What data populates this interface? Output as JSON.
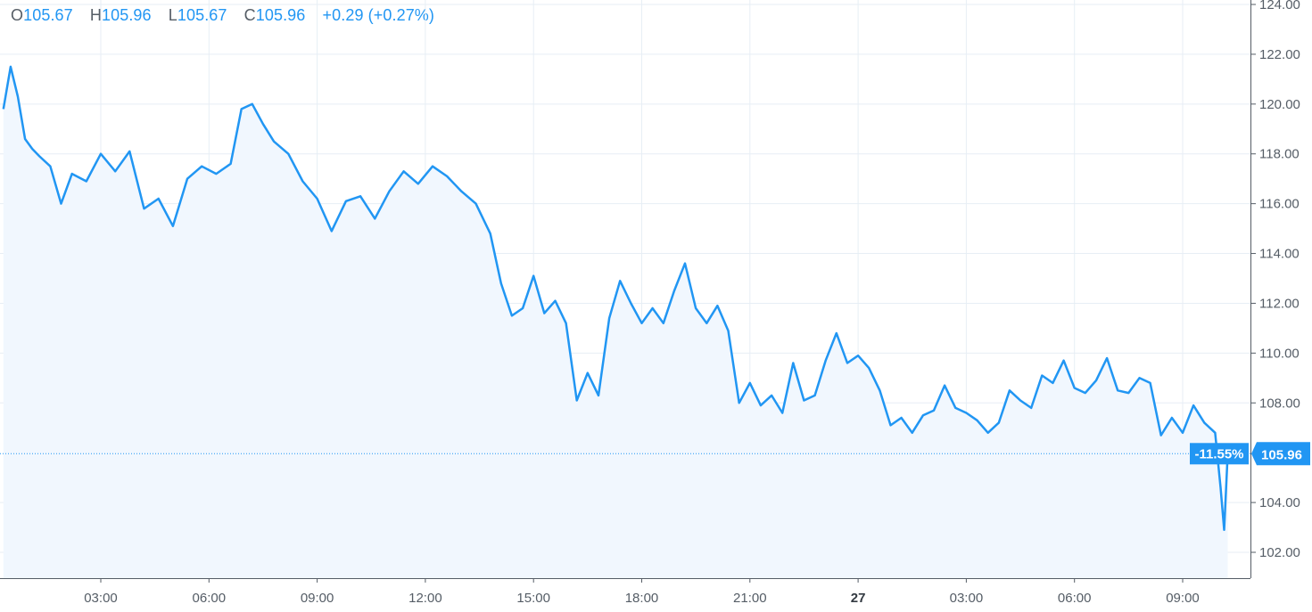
{
  "legend": {
    "open_key": "O",
    "open": "105.67",
    "high_key": "H",
    "high": "105.96",
    "low_key": "L",
    "low": "105.67",
    "close_key": "C",
    "close": "105.96",
    "change": "+0.29 (+0.27%)"
  },
  "colors": {
    "line": "#2196f3",
    "area": "#f1f7fe",
    "grid": "#e7eef5",
    "badge": "#2196f3",
    "axis": "#555d66"
  },
  "chart_data": {
    "type": "area",
    "title": "",
    "xlabel": "",
    "ylabel": "",
    "ylim": [
      101,
      124
    ],
    "y_ticks": [
      "124.00",
      "122.00",
      "120.00",
      "118.00",
      "116.00",
      "114.00",
      "112.00",
      "110.00",
      "108.00",
      "104.00",
      "102.00"
    ],
    "y_tick_values": [
      124,
      122,
      120,
      118,
      116,
      114,
      112,
      110,
      108,
      104,
      102
    ],
    "x_ticks": [
      "03:00",
      "06:00",
      "09:00",
      "12:00",
      "15:00",
      "18:00",
      "21:00",
      "27",
      "03:00",
      "06:00",
      "09:00"
    ],
    "x_tick_hours": [
      3,
      6,
      9,
      12,
      15,
      18,
      21,
      24,
      27,
      30,
      33
    ],
    "x_range_hours": [
      0.3,
      34.25
    ],
    "series": [
      {
        "x": [
          0.3,
          0.5,
          0.7,
          0.9,
          1.1,
          1.3,
          1.6,
          1.9,
          2.2,
          2.6,
          3.0,
          3.4,
          3.8,
          4.2,
          4.6,
          5.0,
          5.4,
          5.8,
          6.2,
          6.6,
          6.9,
          7.2,
          7.5,
          7.8,
          8.2,
          8.6,
          9.0,
          9.4,
          9.8,
          10.2,
          10.6,
          11.0,
          11.4,
          11.8,
          12.2,
          12.6,
          13.0,
          13.4,
          13.8,
          14.1,
          14.4,
          14.7,
          15.0,
          15.3,
          15.6,
          15.9,
          16.2,
          16.5,
          16.8,
          17.1,
          17.4,
          17.7,
          18.0,
          18.3,
          18.6,
          18.9,
          19.2,
          19.5,
          19.8,
          20.1,
          20.4,
          20.7,
          21.0,
          21.3,
          21.6,
          21.9,
          22.2,
          22.5,
          22.8,
          23.1,
          23.4,
          23.7,
          24.0,
          24.3,
          24.6,
          24.9,
          25.2,
          25.5,
          25.8,
          26.1,
          26.4,
          26.7,
          27.0,
          27.3,
          27.6,
          27.9,
          28.2,
          28.5,
          28.8,
          29.1,
          29.4,
          29.7,
          30.0,
          30.3,
          30.6,
          30.9,
          31.2,
          31.5,
          31.8,
          32.1,
          32.4,
          32.7,
          33.0,
          33.3,
          33.6,
          33.9,
          34.05,
          34.15,
          34.25
        ],
        "y": [
          119.8,
          121.5,
          120.3,
          118.6,
          118.2,
          117.9,
          117.5,
          116.0,
          117.2,
          116.9,
          118.0,
          117.3,
          118.1,
          115.8,
          116.2,
          115.1,
          117.0,
          117.5,
          117.2,
          117.6,
          119.8,
          120.0,
          119.2,
          118.5,
          118.0,
          116.9,
          116.2,
          114.9,
          116.1,
          116.3,
          115.4,
          116.5,
          117.3,
          116.8,
          117.5,
          117.1,
          116.5,
          116.0,
          114.8,
          112.8,
          111.5,
          111.8,
          113.1,
          111.6,
          112.1,
          111.2,
          108.1,
          109.2,
          108.3,
          111.4,
          112.9,
          112.0,
          111.2,
          111.8,
          111.2,
          112.5,
          113.6,
          111.8,
          111.2,
          111.9,
          110.9,
          108.0,
          108.8,
          107.9,
          108.3,
          107.6,
          109.6,
          108.1,
          108.3,
          109.7,
          110.8,
          109.6,
          109.9,
          109.4,
          108.5,
          107.1,
          107.4,
          106.8,
          107.5,
          107.7,
          108.7,
          107.8,
          107.6,
          107.3,
          106.8,
          107.2,
          108.5,
          108.1,
          107.8,
          109.1,
          108.8,
          109.7,
          108.6,
          108.4,
          108.9,
          109.8,
          108.5,
          108.4,
          109.0,
          108.8,
          106.7,
          107.4,
          106.8,
          107.9,
          107.2,
          106.8,
          104.6,
          102.9,
          105.96
        ]
      }
    ],
    "last_price_label": "105.96",
    "last_change_label": "-11.55%",
    "last_price_value": 105.96
  }
}
